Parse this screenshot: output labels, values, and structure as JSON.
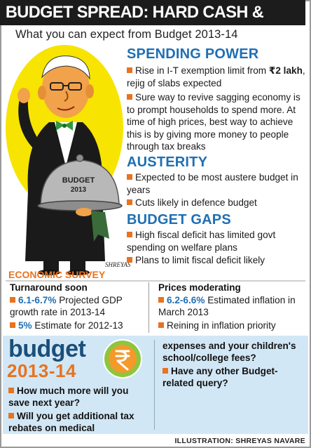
{
  "headline": "BUDGET SPREAD: HARD CASH & COLD CUTS",
  "subhead": "What you can expect from Budget 2013-14",
  "illustration": {
    "tray_text_1": "BUDGET",
    "tray_text_2": "2013",
    "signature": "SHREYAS"
  },
  "spending_power": {
    "title": "SPENDING POWER",
    "bullets": {
      "b1_bold": "₹2 lakh",
      "b1_pre": "Rise in I-T exemption limit from",
      "b1_post": ", rejig of slabs expected",
      "b2": "Sure way to revive sagging economy is to prompt households to spend more. At time of high prices, best way to achieve this is by giving more money to people through tax breaks"
    }
  },
  "austerity": {
    "title": "AUSTERITY",
    "bullet1": "Expected to be most austere budget in years",
    "bullet2": "Cuts likely in defence budget"
  },
  "budget_gaps": {
    "title": "BUDGET GAPS",
    "bullet1": "High fiscal deficit has limited govt spending on welfare plans",
    "bullet2": "Plans to limit fiscal deficit likely"
  },
  "economic_survey": {
    "title": "ECONOMIC SURVEY",
    "left": {
      "heading": "Turnaround soon",
      "item1_value": "6.1-6.7%",
      "item1_text": " Projected GDP growth rate in 2013-14",
      "item2_value": "5%",
      "item2_text": " Estimate for 2012-13"
    },
    "right": {
      "heading": "Prices moderating",
      "item1_value": "6.2-6.6%",
      "item1_text": " Estimated inflation in March 2013",
      "item2_text": "Reining in inflation priority"
    }
  },
  "promo": {
    "budget_word": "budget",
    "budget_year": "2013-14",
    "q1": "How much more will you save next year?",
    "q2": "Will you get additional tax rebates on medical",
    "q2_cont": "expenses and your children's school/college fees?",
    "q3": "Have any other Budget-related query?"
  },
  "credit": "ILLUSTRATION: SHREYAS NAVARE",
  "colors": {
    "accent_blue": "#1f6fb3",
    "accent_orange": "#e8731f",
    "promo_bg": "#d2e7f5",
    "headline_bg": "#1c1c1c"
  }
}
